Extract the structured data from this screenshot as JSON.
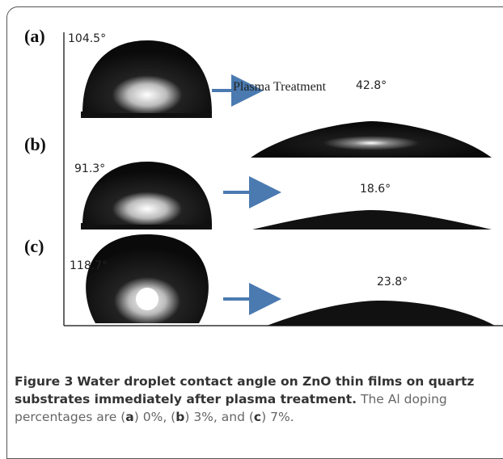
{
  "figure": {
    "panels": [
      {
        "label": "(a)",
        "angle_before": "104.5°",
        "treatment": "Plasma Treatment",
        "angle_after": "42.8°"
      },
      {
        "label": "(b)",
        "angle_before": "91.3°",
        "angle_after": "18.6°"
      },
      {
        "label": "(c)",
        "angle_before": "118.7°",
        "angle_after": "23.8°"
      }
    ],
    "caption": {
      "label": "Figure 3",
      "title": "Water droplet contact angle on ZnO thin films on quartz substrates immediately after plasma treatment.",
      "parts": [
        "The Al doping percentages are (",
        "a",
        ") 0%, (",
        "b",
        ") 3%, and (",
        "c",
        ") 7%."
      ]
    }
  }
}
